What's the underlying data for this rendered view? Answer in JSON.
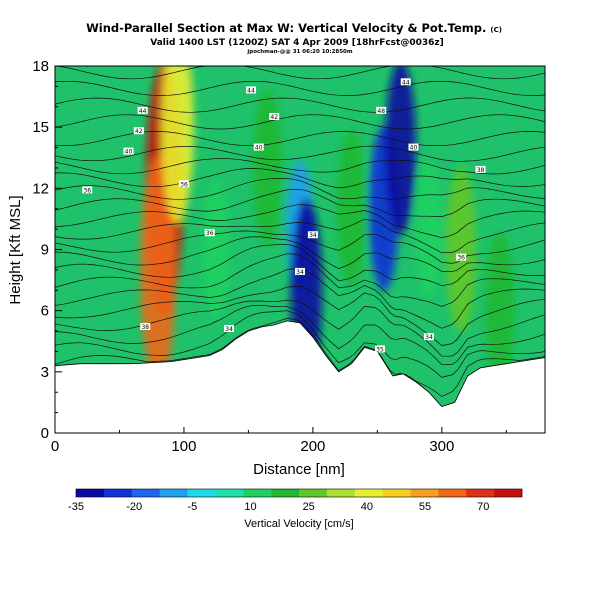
{
  "header": {
    "title": "Wind-Parallel Section at Max W: Vertical Velocity & Pot.Temp.",
    "title_mark": "(C)",
    "subtitle": "Valid 1400 LST (1200Z) SAT 4 Apr 2009 [18hrFcst@0036z]",
    "credit": "jpochman-@@ 31 06:20 10:2850m"
  },
  "chart_data": {
    "type": "heatmap",
    "xlabel": "Distance [nm]",
    "ylabel": "Height [Kft MSL]",
    "xlim": [
      0,
      380
    ],
    "ylim": [
      0,
      18
    ],
    "x_ticks": [
      "0",
      "100",
      "200",
      "300"
    ],
    "x_tick_values": [
      0,
      100,
      200,
      300
    ],
    "y_ticks": [
      "0",
      "3",
      "6",
      "9",
      "12",
      "15",
      "18"
    ],
    "y_tick_values": [
      0,
      3,
      6,
      9,
      12,
      15,
      18
    ],
    "terrain": {
      "x": [
        0,
        20,
        60,
        90,
        100,
        110,
        120,
        130,
        140,
        150,
        160,
        170,
        180,
        190,
        200,
        210,
        220,
        230,
        240,
        250,
        258,
        262,
        270,
        280,
        290,
        300,
        310,
        320,
        330,
        340,
        350,
        360,
        370,
        380
      ],
      "h": [
        3.3,
        3.4,
        3.4,
        3.5,
        3.6,
        3.7,
        3.8,
        4.1,
        4.6,
        5.0,
        5.2,
        5.3,
        5.5,
        5.4,
        4.7,
        3.8,
        3.0,
        3.4,
        4.2,
        4.0,
        3.2,
        2.8,
        2.9,
        2.5,
        2.0,
        1.3,
        1.5,
        2.8,
        3.2,
        3.3,
        3.4,
        3.5,
        3.6,
        3.7
      ]
    },
    "vertical_velocity_cells": [
      {
        "x": 85,
        "z": 12,
        "w": 75
      },
      {
        "x": 80,
        "z": 8,
        "w": 60
      },
      {
        "x": 95,
        "z": 15,
        "w": 40
      },
      {
        "x": 125,
        "z": 9,
        "w": 10
      },
      {
        "x": 165,
        "z": 13,
        "w": 20
      },
      {
        "x": 190,
        "z": 10,
        "w": -10
      },
      {
        "x": 195,
        "z": 7,
        "w": -35
      },
      {
        "x": 230,
        "z": 11,
        "w": 20
      },
      {
        "x": 255,
        "z": 11,
        "w": -25
      },
      {
        "x": 268,
        "z": 14,
        "w": -30
      },
      {
        "x": 290,
        "z": 10,
        "w": 10
      },
      {
        "x": 315,
        "z": 9,
        "w": 25
      },
      {
        "x": 345,
        "z": 6,
        "w": 20
      }
    ],
    "theta_contour_labels": [
      {
        "x": 68,
        "z": 15.8,
        "text": "44"
      },
      {
        "x": 65,
        "z": 14.8,
        "text": "42"
      },
      {
        "x": 57,
        "z": 13.8,
        "text": "40"
      },
      {
        "x": 25,
        "z": 11.9,
        "text": "36"
      },
      {
        "x": 152,
        "z": 16.8,
        "text": "44"
      },
      {
        "x": 170,
        "z": 15.5,
        "text": "42"
      },
      {
        "x": 158,
        "z": 14.0,
        "text": "40"
      },
      {
        "x": 100,
        "z": 12.2,
        "text": "36"
      },
      {
        "x": 120,
        "z": 9.8,
        "text": "36"
      },
      {
        "x": 200,
        "z": 9.7,
        "text": "34"
      },
      {
        "x": 190,
        "z": 7.9,
        "text": "34"
      },
      {
        "x": 70,
        "z": 5.2,
        "text": "38"
      },
      {
        "x": 135,
        "z": 5.1,
        "text": "34"
      },
      {
        "x": 272,
        "z": 17.2,
        "text": "44"
      },
      {
        "x": 253,
        "z": 15.8,
        "text": "48"
      },
      {
        "x": 278,
        "z": 14.0,
        "text": "40"
      },
      {
        "x": 330,
        "z": 12.9,
        "text": "38"
      },
      {
        "x": 315,
        "z": 8.6,
        "text": "36"
      },
      {
        "x": 290,
        "z": 4.7,
        "text": "34"
      },
      {
        "x": 252,
        "z": 4.1,
        "text": "35"
      }
    ]
  },
  "colorbar": {
    "label": "Vertical Velocity [cm/s]",
    "tick_labels": [
      "-35",
      "-20",
      "-5",
      "10",
      "25",
      "40",
      "55",
      "70"
    ],
    "tick_values": [
      -35,
      -20,
      -5,
      10,
      25,
      40,
      55,
      70
    ],
    "min": -35,
    "max": 80,
    "colors": [
      "#0a0aa0",
      "#1030d8",
      "#1e66ee",
      "#20a0f0",
      "#20d8e8",
      "#20e0b0",
      "#20d060",
      "#20b830",
      "#60c828",
      "#a8e030",
      "#e8f030",
      "#f8d020",
      "#f8a020",
      "#f06818",
      "#e03018",
      "#c81010"
    ]
  }
}
